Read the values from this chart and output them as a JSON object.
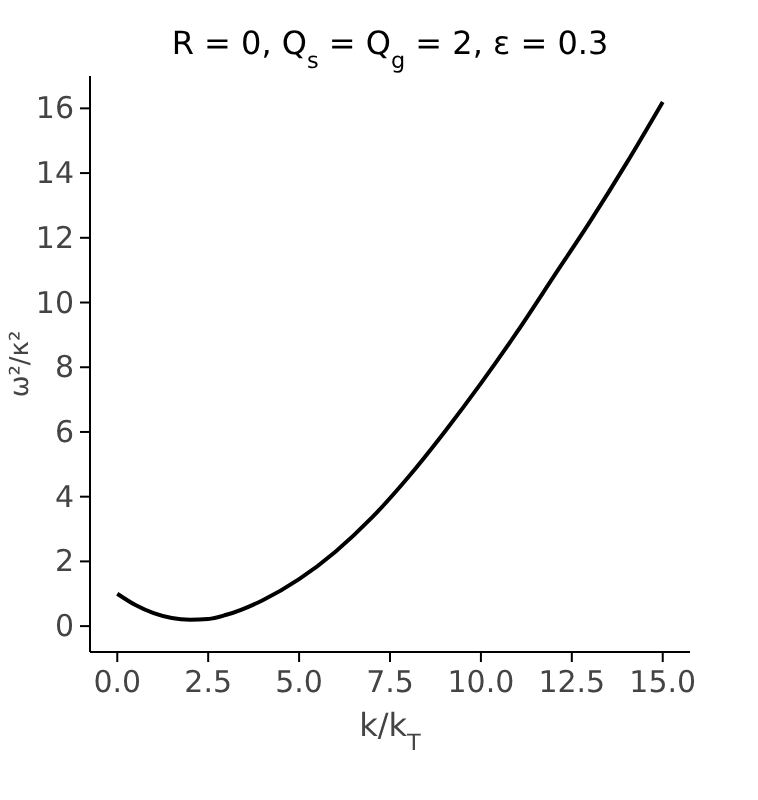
{
  "chart_data": {
    "type": "line",
    "title": "R = 0, Q$_{s}$ = Q$_{g}$ = 2, ε = 0.3",
    "xlabel": "k/k$_{T}$",
    "ylabel": "ω²/κ²",
    "x": [
      0,
      0.5,
      1,
      1.5,
      2,
      2.5,
      3,
      4,
      5,
      6,
      7,
      8,
      9,
      10,
      11,
      12,
      13,
      14,
      15
    ],
    "series": [
      {
        "color": "#000000",
        "values": [
          1.0,
          0.65,
          0.4,
          0.25,
          0.2,
          0.22,
          0.35,
          0.8,
          1.45,
          2.3,
          3.35,
          4.6,
          6.0,
          7.5,
          9.1,
          10.8,
          12.5,
          14.3,
          16.2
        ]
      }
    ],
    "xlim": [
      -0.75,
      15.75
    ],
    "ylim": [
      -0.8,
      17
    ],
    "xticks": [
      {
        "value": 0,
        "label": "0.0"
      },
      {
        "value": 2.5,
        "label": "2.5"
      },
      {
        "value": 5,
        "label": "5.0"
      },
      {
        "value": 7.5,
        "label": "7.5"
      },
      {
        "value": 10,
        "label": "10.0"
      },
      {
        "value": 12.5,
        "label": "12.5"
      },
      {
        "value": 15,
        "label": "15.0"
      }
    ],
    "yticks": [
      0,
      2,
      4,
      6,
      8,
      10,
      12,
      14,
      16
    ],
    "grid": false
  }
}
